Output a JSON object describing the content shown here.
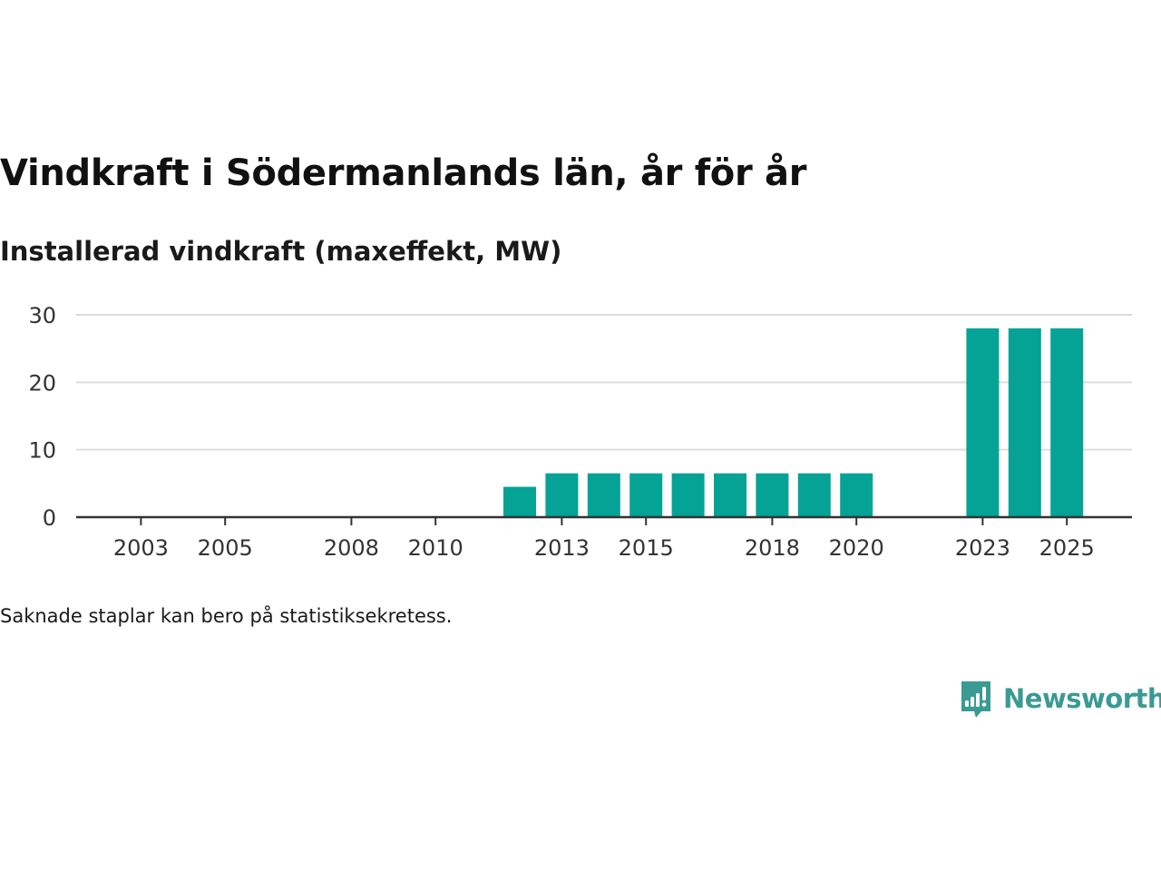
{
  "header": {
    "title": "Vindkraft i Södermanlands län, år för år",
    "subtitle": "Installerad vindkraft (maxeffekt, MW)"
  },
  "footer": {
    "note": "Saknade staplar kan bero på statistiksekretess.",
    "brand": "Newsworthy",
    "brand_icon": "newsworthy-logo-icon"
  },
  "colors": {
    "bar": "#04a396",
    "grid": "#dddddd",
    "axis": "#333333",
    "brand": "#3b9a93"
  },
  "chart_data": {
    "type": "bar",
    "title": "Vindkraft i Södermanlands län, år för år",
    "ylabel": "Installerad vindkraft (maxeffekt, MW)",
    "xlabel": "",
    "ylim": [
      0,
      30
    ],
    "yticks": [
      0,
      10,
      20,
      30
    ],
    "xtick_labels": [
      "2003",
      "2005",
      "2008",
      "2010",
      "2013",
      "2015",
      "2018",
      "2020",
      "2023",
      "2025"
    ],
    "grid": true,
    "categories": [
      "2002",
      "2003",
      "2004",
      "2005",
      "2006",
      "2007",
      "2008",
      "2009",
      "2010",
      "2011",
      "2012",
      "2013",
      "2014",
      "2015",
      "2016",
      "2017",
      "2018",
      "2019",
      "2020",
      "2021",
      "2022",
      "2023",
      "2024",
      "2025",
      "2026"
    ],
    "values": [
      null,
      null,
      null,
      null,
      null,
      null,
      null,
      null,
      null,
      null,
      4.5,
      6.5,
      6.5,
      6.5,
      6.5,
      6.5,
      6.5,
      6.5,
      6.5,
      null,
      null,
      28,
      28,
      28,
      null
    ]
  }
}
